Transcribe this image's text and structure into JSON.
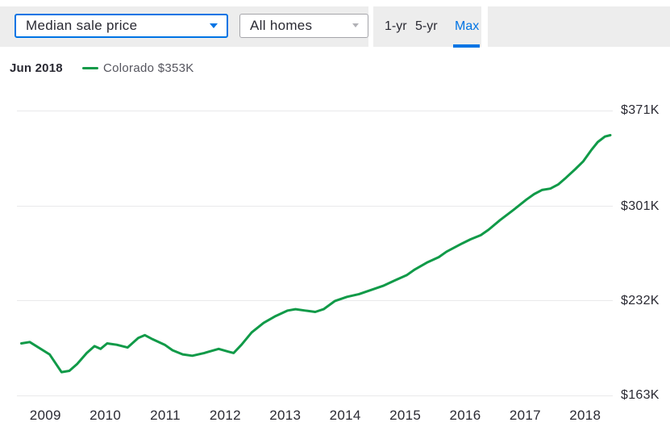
{
  "toolbar": {
    "metric_dropdown": {
      "value": "Median sale price"
    },
    "home_type_dropdown": {
      "value": "All homes"
    },
    "tabs": [
      {
        "label": "1-yr",
        "active": false
      },
      {
        "label": "5-yr",
        "active": false
      },
      {
        "label": "Max",
        "active": true
      }
    ]
  },
  "legend": {
    "date": "Jun 2018",
    "series_label": "Colorado $353K"
  },
  "colors": {
    "accent_blue": "#0074e4",
    "line_green": "#109a48",
    "toolbar_gray": "#ededed",
    "grid_gray": "#e9e9eb",
    "text_dark": "#2a2a33",
    "text_gray": "#55555e"
  },
  "chart_data": {
    "type": "line",
    "series": [
      {
        "name": "Colorado",
        "color": "#109a48",
        "points": [
          [
            2008.6,
            201
          ],
          [
            2008.74,
            202
          ],
          [
            2009.07,
            193
          ],
          [
            2009.27,
            180
          ],
          [
            2009.4,
            181
          ],
          [
            2009.53,
            186
          ],
          [
            2009.69,
            194
          ],
          [
            2009.82,
            199
          ],
          [
            2009.92,
            197
          ],
          [
            2010.03,
            201
          ],
          [
            2010.19,
            200
          ],
          [
            2010.37,
            198
          ],
          [
            2010.55,
            205
          ],
          [
            2010.66,
            207
          ],
          [
            2010.79,
            204
          ],
          [
            2010.99,
            200
          ],
          [
            2011.12,
            196
          ],
          [
            2011.29,
            193
          ],
          [
            2011.45,
            192
          ],
          [
            2011.65,
            194
          ],
          [
            2011.89,
            197
          ],
          [
            2012.05,
            195
          ],
          [
            2012.14,
            194
          ],
          [
            2012.27,
            200
          ],
          [
            2012.44,
            209
          ],
          [
            2012.64,
            216
          ],
          [
            2012.84,
            221
          ],
          [
            2013.04,
            225
          ],
          [
            2013.17,
            226
          ],
          [
            2013.33,
            225
          ],
          [
            2013.5,
            224
          ],
          [
            2013.64,
            226
          ],
          [
            2013.83,
            232
          ],
          [
            2014.03,
            235
          ],
          [
            2014.23,
            237
          ],
          [
            2014.43,
            240
          ],
          [
            2014.63,
            243
          ],
          [
            2014.83,
            247
          ],
          [
            2015.03,
            251
          ],
          [
            2015.16,
            255
          ],
          [
            2015.36,
            260
          ],
          [
            2015.56,
            264
          ],
          [
            2015.69,
            268
          ],
          [
            2015.82,
            271
          ],
          [
            2015.95,
            274
          ],
          [
            2016.09,
            277
          ],
          [
            2016.26,
            280
          ],
          [
            2016.39,
            284
          ],
          [
            2016.58,
            291
          ],
          [
            2016.82,
            299
          ],
          [
            2017.02,
            306
          ],
          [
            2017.15,
            310
          ],
          [
            2017.28,
            313
          ],
          [
            2017.42,
            314
          ],
          [
            2017.55,
            317
          ],
          [
            2017.68,
            322
          ],
          [
            2017.83,
            328
          ],
          [
            2017.97,
            334
          ],
          [
            2018.1,
            342
          ],
          [
            2018.21,
            348
          ],
          [
            2018.33,
            352
          ],
          [
            2018.42,
            353
          ]
        ]
      }
    ],
    "x_ticks": [
      {
        "value": 2009,
        "label": "2009"
      },
      {
        "value": 2010,
        "label": "2010"
      },
      {
        "value": 2011,
        "label": "2011"
      },
      {
        "value": 2012,
        "label": "2012"
      },
      {
        "value": 2013,
        "label": "2013"
      },
      {
        "value": 2014,
        "label": "2014"
      },
      {
        "value": 2015,
        "label": "2015"
      },
      {
        "value": 2016,
        "label": "2016"
      },
      {
        "value": 2017,
        "label": "2017"
      },
      {
        "value": 2018,
        "label": "2018"
      }
    ],
    "y_ticks": [
      {
        "value": 163,
        "label": "$163K"
      },
      {
        "value": 232,
        "label": "$232K"
      },
      {
        "value": 301,
        "label": "$301K"
      },
      {
        "value": 371,
        "label": "$371K"
      }
    ],
    "xlim": [
      2008.58,
      2018.42
    ],
    "ylim": [
      163,
      371
    ],
    "grid": "horizontal",
    "y_axis_side": "right",
    "y_unit": "$K",
    "latest": {
      "date": "Jun 2018",
      "region": "Colorado",
      "value": 353,
      "value_label": "$353K"
    }
  }
}
